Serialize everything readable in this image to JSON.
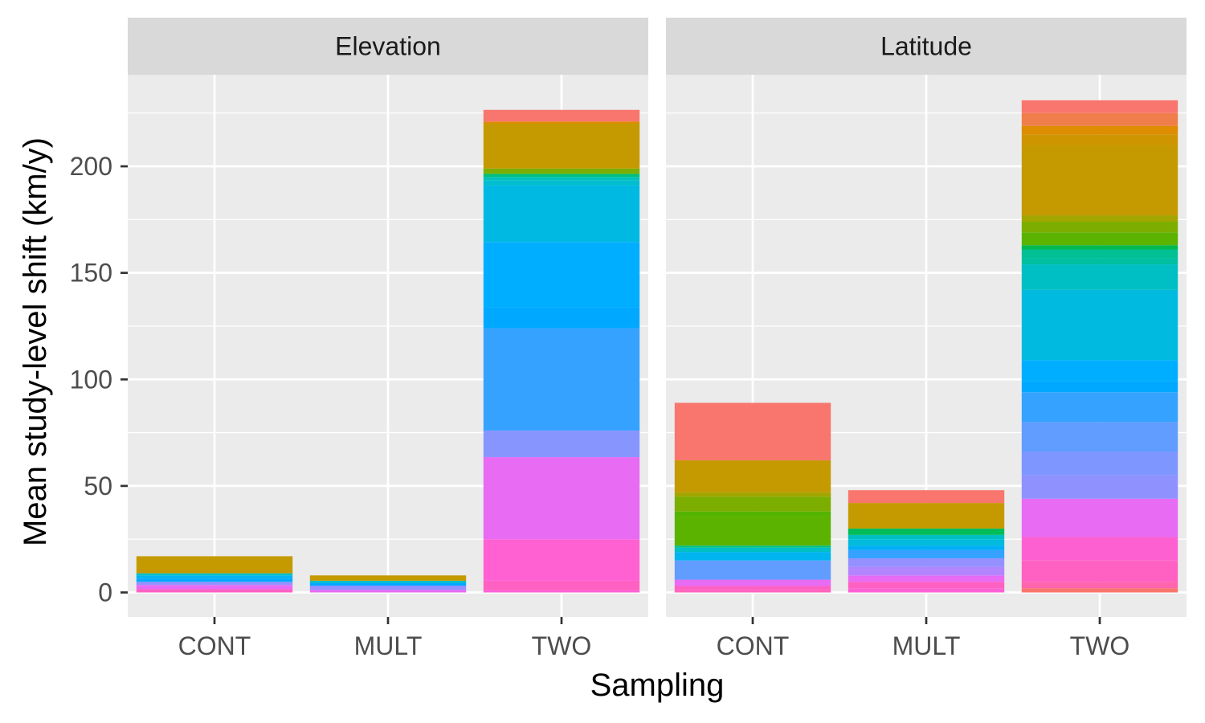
{
  "chart_data": {
    "type": "bar",
    "stacked": true,
    "xlabel": "Sampling",
    "ylabel": "Mean study-level shift (km/y)",
    "ylim": [
      -11.5,
      243
    ],
    "yticks": [
      0,
      50,
      100,
      150,
      200
    ],
    "categories": [
      "CONT",
      "MULT",
      "TWO"
    ],
    "panel_background": "#ebebeb",
    "strip_background": "#d9d9d9",
    "grid_color": "#ffffff",
    "grid": true,
    "legend": "none",
    "panels": [
      {
        "title": "Elevation",
        "bars": [
          {
            "category": "CONT",
            "segments": [
              {
                "value": 1.5,
                "color": "#ff61c3"
              },
              {
                "value": 2.0,
                "color": "#e76bf3"
              },
              {
                "value": 1.5,
                "color": "#9590ff"
              },
              {
                "value": 1.5,
                "color": "#00a9ff"
              },
              {
                "value": 1.5,
                "color": "#00b4f0"
              },
              {
                "value": 1.0,
                "color": "#00bfc4"
              },
              {
                "value": 8.0,
                "color": "#c49a00"
              }
            ]
          },
          {
            "category": "MULT",
            "segments": [
              {
                "value": 1.2,
                "color": "#e76bf3"
              },
              {
                "value": 2.0,
                "color": "#9590ff"
              },
              {
                "value": 1.3,
                "color": "#00a9ff"
              },
              {
                "value": 1.0,
                "color": "#00bfc4"
              },
              {
                "value": 2.5,
                "color": "#c49a00"
              }
            ]
          },
          {
            "category": "TWO",
            "segments": [
              {
                "value": 1.0,
                "color": "#fb61d7"
              },
              {
                "value": 4.5,
                "color": "#ff61c3"
              },
              {
                "value": 19.5,
                "color": "#ff61d2"
              },
              {
                "value": 38.5,
                "color": "#e76bf3"
              },
              {
                "value": 12.5,
                "color": "#8796ff"
              },
              {
                "value": 48.0,
                "color": "#35a2ff"
              },
              {
                "value": 10.0,
                "color": "#00a9ff"
              },
              {
                "value": 30.5,
                "color": "#00aeff"
              },
              {
                "value": 26.5,
                "color": "#00b9e3"
              },
              {
                "value": 2.5,
                "color": "#00bdd0"
              },
              {
                "value": 1.5,
                "color": "#00c0b8"
              },
              {
                "value": 1.5,
                "color": "#00bf7d"
              },
              {
                "value": 2.5,
                "color": "#7cae00"
              },
              {
                "value": 21.0,
                "color": "#c49a00"
              },
              {
                "value": 1.0,
                "color": "#de8c00"
              },
              {
                "value": 5.5,
                "color": "#f8766d"
              }
            ]
          }
        ]
      },
      {
        "title": "Latitude",
        "bars": [
          {
            "category": "CONT",
            "segments": [
              {
                "value": 1.0,
                "color": "#ff62bc"
              },
              {
                "value": 2.0,
                "color": "#ff61c3"
              },
              {
                "value": 3.0,
                "color": "#e76bf3"
              },
              {
                "value": 9.0,
                "color": "#619cff"
              },
              {
                "value": 4.0,
                "color": "#00b4f0"
              },
              {
                "value": 2.0,
                "color": "#00bfc4"
              },
              {
                "value": 1.0,
                "color": "#00c08b"
              },
              {
                "value": 14.0,
                "color": "#5bb300"
              },
              {
                "value": 2.0,
                "color": "#53b400"
              },
              {
                "value": 7.0,
                "color": "#7cae00"
              },
              {
                "value": 2.0,
                "color": "#a3a500"
              },
              {
                "value": 15.0,
                "color": "#c49a00"
              },
              {
                "value": 27.0,
                "color": "#f8766d"
              }
            ]
          },
          {
            "category": "MULT",
            "segments": [
              {
                "value": 2.0,
                "color": "#fc61d5"
              },
              {
                "value": 3.0,
                "color": "#ff61c3"
              },
              {
                "value": 3.0,
                "color": "#e76bf3"
              },
              {
                "value": 4.0,
                "color": "#b385ff"
              },
              {
                "value": 4.0,
                "color": "#9590ff"
              },
              {
                "value": 4.0,
                "color": "#35a2ff"
              },
              {
                "value": 2.0,
                "color": "#00b0f6"
              },
              {
                "value": 3.0,
                "color": "#00bbdb"
              },
              {
                "value": 2.0,
                "color": "#00bfc4"
              },
              {
                "value": 3.0,
                "color": "#00bc59"
              },
              {
                "value": 12.0,
                "color": "#c49a00"
              },
              {
                "value": 6.0,
                "color": "#f8766d"
              }
            ]
          },
          {
            "category": "TWO",
            "segments": [
              {
                "value": 2.0,
                "color": "#f8766d"
              },
              {
                "value": 3.0,
                "color": "#ff65ae"
              },
              {
                "value": 10.0,
                "color": "#ff61c3"
              },
              {
                "value": 11.0,
                "color": "#fd61d1"
              },
              {
                "value": 18.0,
                "color": "#e76bf3"
              },
              {
                "value": 11.0,
                "color": "#8f91ff"
              },
              {
                "value": 11.0,
                "color": "#7e96ff"
              },
              {
                "value": 14.0,
                "color": "#619cff"
              },
              {
                "value": 14.0,
                "color": "#35a2ff"
              },
              {
                "value": 5.0,
                "color": "#00a9ff"
              },
              {
                "value": 10.0,
                "color": "#00aeff"
              },
              {
                "value": 33.0,
                "color": "#00bae0"
              },
              {
                "value": 12.0,
                "color": "#00bfc4"
              },
              {
                "value": 3.0,
                "color": "#00bfa0"
              },
              {
                "value": 4.0,
                "color": "#00c094"
              },
              {
                "value": 2.0,
                "color": "#00b94e"
              },
              {
                "value": 6.0,
                "color": "#5bb300"
              },
              {
                "value": 5.0,
                "color": "#7cae00"
              },
              {
                "value": 3.0,
                "color": "#a3a500"
              },
              {
                "value": 33.0,
                "color": "#c49a00"
              },
              {
                "value": 5.0,
                "color": "#cf9500"
              },
              {
                "value": 4.0,
                "color": "#de8c00"
              },
              {
                "value": 6.0,
                "color": "#f07e4b"
              },
              {
                "value": 6.0,
                "color": "#f8766d"
              }
            ]
          }
        ]
      }
    ]
  }
}
